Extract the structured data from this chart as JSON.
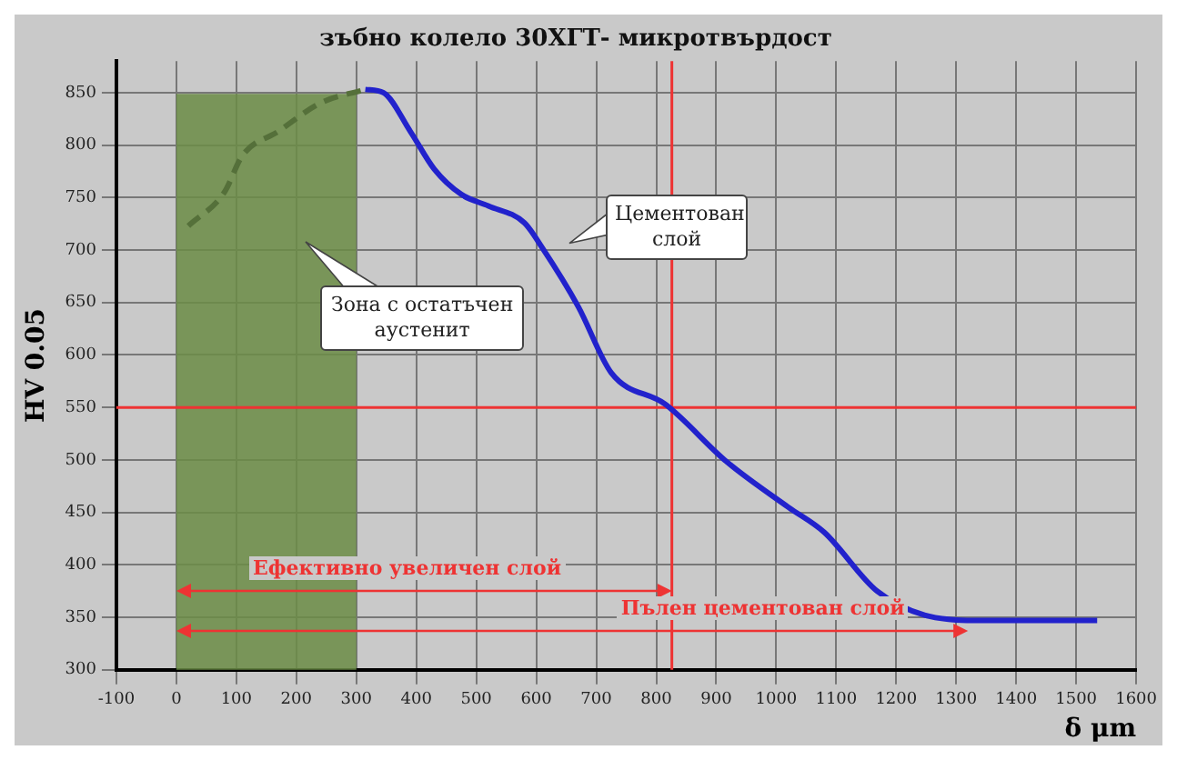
{
  "chart_data": {
    "type": "line",
    "title": "зъбно колело 30ХГТ- микротвърдост",
    "xlabel": "δ μm",
    "ylabel": "HV 0.05",
    "series": [
      {
        "color": "#55703a",
        "line_style": "dashed",
        "x": [
          20,
          80,
          110,
          170,
          240,
          315
        ],
        "values": [
          723,
          755,
          790,
          813,
          840,
          853
        ]
      },
      {
        "color": "#2222cc",
        "line_style": "solid",
        "x": [
          315,
          345,
          390,
          430,
          475,
          520,
          580,
          610,
          670,
          725,
          815,
          918,
          1020,
          1080,
          1168,
          1255,
          1344,
          1432,
          1535
        ],
        "values": [
          853,
          850,
          813,
          777,
          753,
          742,
          726,
          702,
          646,
          583,
          553,
          498,
          455,
          431,
          375,
          351,
          347,
          347,
          347
        ]
      }
    ],
    "xlim": [
      -100,
      1600
    ],
    "xticks": [
      -100,
      0,
      100,
      200,
      300,
      400,
      500,
      600,
      700,
      800,
      900,
      1000,
      1100,
      1200,
      1300,
      1400,
      1500,
      1600
    ],
    "ylim": [
      300,
      880
    ],
    "yticks": [
      300,
      350,
      400,
      450,
      500,
      550,
      600,
      650,
      700,
      750,
      800,
      850
    ],
    "grid": true,
    "legend": false,
    "bands": [
      {
        "axis": "x",
        "from": 0,
        "to": 300,
        "color": "#6b8c45"
      }
    ],
    "ref_lines": [
      {
        "axis": "y",
        "value": 550,
        "color": "#ee3333"
      },
      {
        "axis": "x",
        "value": 826,
        "color": "#ee3333"
      }
    ],
    "annotations": [
      "Цементован слой",
      "Зона с остатъчен аустенит",
      "Ефективно увеличен слой",
      "Пълен цементован слой"
    ]
  }
}
